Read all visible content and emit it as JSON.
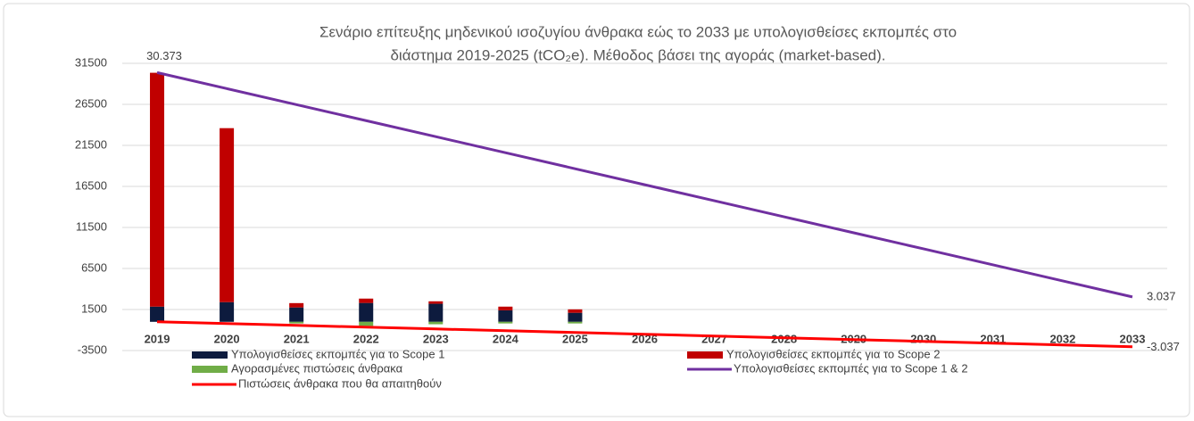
{
  "chart_data": {
    "type": "bar",
    "title": [
      "Σενάριο επίτευξης μηδενικού ισοζυγίου άνθρακα εώς το 2033 με υπολογισθείσες εκπομπές  στο",
      "διάστημα 2019-2025 (tCO₂e). Μέθοδος βάσει της αγοράς (market-based)."
    ],
    "categories": [
      "2019",
      "2020",
      "2021",
      "2022",
      "2023",
      "2024",
      "2025",
      "2026",
      "2027",
      "2028",
      "2029",
      "2030",
      "2031",
      "2032",
      "2033"
    ],
    "ylim": [
      -3500,
      31500
    ],
    "yticks": [
      -3500,
      1500,
      6500,
      11500,
      16500,
      21500,
      26500,
      31500
    ],
    "grid": true,
    "series": [
      {
        "name": "Υπολογισθείσες εκπομπές για το Scope 1",
        "color": "#0d1b3e",
        "kind": "bar",
        "values": [
          1850,
          2400,
          1750,
          2300,
          2200,
          1400,
          1100,
          null,
          null,
          null,
          null,
          null,
          null,
          null,
          null
        ]
      },
      {
        "name": "Υπολογισθείσες εκπομπές για το Scope 2",
        "color": "#c00000",
        "kind": "bar",
        "values": [
          28500,
          21200,
          530,
          530,
          300,
          450,
          420,
          null,
          null,
          null,
          null,
          null,
          null,
          null,
          null
        ]
      },
      {
        "name": "Αγορασμένες  πιστώσεις άνθρακα",
        "color": "#70ad47",
        "kind": "bar",
        "values": [
          0,
          0,
          -200,
          -500,
          -300,
          -200,
          -200,
          null,
          null,
          null,
          null,
          null,
          null,
          null,
          null
        ]
      },
      {
        "name": "Υπολογισθείσες εκπομπές για το Scope 1 & 2",
        "color": "#7030a0",
        "kind": "line",
        "values": [
          30373,
          28420,
          26468,
          24515,
          22563,
          20610,
          18657,
          16705,
          14752,
          12800,
          10847,
          8895,
          6942,
          4989,
          3037
        ],
        "value_labels": [
          "30.373",
          null,
          null,
          null,
          null,
          null,
          null,
          null,
          null,
          null,
          null,
          null,
          null,
          null,
          "3.037"
        ]
      },
      {
        "name": "Πιστώσεις άνθρακα που θα απαιτηθούν",
        "color": "#ff0000",
        "kind": "line",
        "values": [
          0,
          -217,
          -434,
          -651,
          -868,
          -1085,
          -1302,
          -1519,
          -1735,
          -1952,
          -2169,
          -2386,
          -2603,
          -2820,
          -3037
        ],
        "value_labels": [
          null,
          null,
          null,
          null,
          null,
          null,
          null,
          null,
          null,
          null,
          null,
          null,
          null,
          null,
          "-3.037"
        ]
      }
    ]
  }
}
